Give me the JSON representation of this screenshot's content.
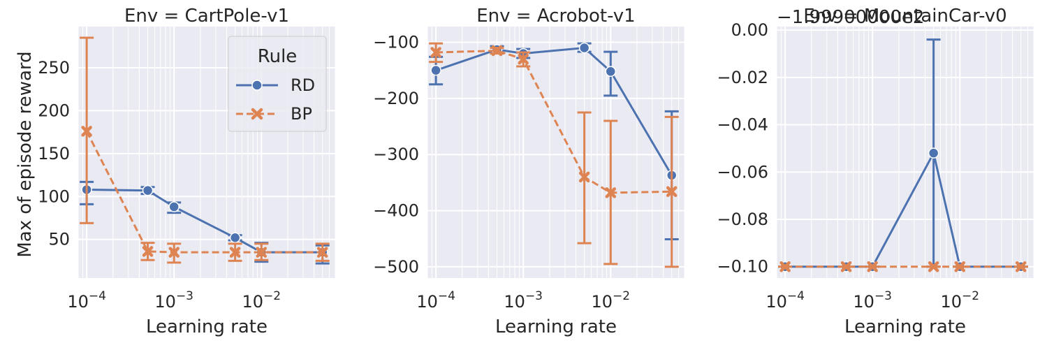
{
  "figure": {
    "ylabel": "Max of episode reward",
    "legend": {
      "title": "Rule",
      "placement": "upper right of first panel",
      "entries": [
        "RD",
        "BP"
      ]
    }
  },
  "chart_data": [
    {
      "type": "line",
      "title": "Env = CartPole-v1",
      "xlabel": "Learning rate",
      "ylabel": "Max of episode reward",
      "x_scale": "log",
      "x": [
        0.0001,
        0.0005,
        0.001,
        0.005,
        0.01,
        0.05
      ],
      "xlim": [
        8e-05,
        0.07
      ],
      "x_ticks": [
        {
          "value": 0.0001,
          "label": "10⁻⁴"
        },
        {
          "value": 0.001,
          "label": "10⁻³"
        },
        {
          "value": 0.01,
          "label": "10⁻²"
        }
      ],
      "ylim": [
        5,
        298
      ],
      "y_ticks": [
        {
          "value": 50,
          "label": "50"
        },
        {
          "value": 100,
          "label": "100"
        },
        {
          "value": 150,
          "label": "150"
        },
        {
          "value": 200,
          "label": "200"
        },
        {
          "value": 250,
          "label": "250"
        }
      ],
      "y_offset_label": "",
      "grid": true,
      "series": [
        {
          "name": "RD",
          "color": "#4c72b0",
          "marker": "circle",
          "linestyle": "solid",
          "values": [
            108,
            107,
            88,
            52,
            35,
            35
          ],
          "err_low": [
            91,
            103,
            81,
            49,
            24,
            22
          ],
          "err_high": [
            117,
            111,
            93,
            55,
            46,
            43
          ]
        },
        {
          "name": "BP",
          "color": "#dd8452",
          "marker": "x",
          "linestyle": "dashed",
          "values": [
            176,
            36,
            35,
            35,
            35,
            35
          ],
          "err_low": [
            69,
            26,
            23,
            25,
            26,
            25
          ],
          "err_high": [
            285,
            46,
            45,
            45,
            45,
            45
          ]
        }
      ]
    },
    {
      "type": "line",
      "title": "Env = Acrobot-v1",
      "xlabel": "Learning rate",
      "ylabel": "",
      "x_scale": "log",
      "x": [
        0.0001,
        0.0005,
        0.001,
        0.005,
        0.01,
        0.05
      ],
      "xlim": [
        8e-05,
        0.07
      ],
      "x_ticks": [
        {
          "value": 0.0001,
          "label": "10⁻⁴"
        },
        {
          "value": 0.001,
          "label": "10⁻³"
        },
        {
          "value": 0.01,
          "label": "10⁻²"
        }
      ],
      "ylim": [
        -520,
        -72
      ],
      "y_ticks": [
        {
          "value": -100,
          "label": "−100"
        },
        {
          "value": -200,
          "label": "−200"
        },
        {
          "value": -300,
          "label": "−300"
        },
        {
          "value": -400,
          "label": "−400"
        },
        {
          "value": -500,
          "label": "−500"
        }
      ],
      "y_offset_label": "",
      "grid": true,
      "series": [
        {
          "name": "RD",
          "color": "#4c72b0",
          "marker": "circle",
          "linestyle": "solid",
          "values": [
            -150,
            -113,
            -120,
            -110,
            -152,
            -337
          ],
          "err_low": [
            -175,
            -120,
            -128,
            -117,
            -195,
            -451
          ],
          "err_high": [
            -126,
            -107,
            -112,
            -102,
            -117,
            -223
          ]
        },
        {
          "name": "BP",
          "color": "#dd8452",
          "marker": "x",
          "linestyle": "dashed",
          "values": [
            -118,
            -115,
            -130,
            -340,
            -368,
            -366
          ],
          "err_low": [
            -135,
            -120,
            -143,
            -458,
            -495,
            -500
          ],
          "err_high": [
            -102,
            -110,
            -118,
            -225,
            -240,
            -233
          ]
        }
      ]
    },
    {
      "type": "line",
      "title": "Env = MountainCar-v0",
      "xlabel": "Learning rate",
      "ylabel": "",
      "x_scale": "log",
      "x": [
        0.0001,
        0.0005,
        0.001,
        0.005,
        0.01,
        0.05
      ],
      "xlim": [
        8e-05,
        0.07
      ],
      "x_ticks": [
        {
          "value": 0.0001,
          "label": "10⁻⁴"
        },
        {
          "value": 0.001,
          "label": "10⁻³"
        },
        {
          "value": 0.01,
          "label": "10⁻²"
        }
      ],
      "ylim": [
        -0.1048,
        0.0015
      ],
      "y_ticks": [
        {
          "value": 0.0,
          "label": "0.00"
        },
        {
          "value": -0.02,
          "label": "−0.02"
        },
        {
          "value": -0.04,
          "label": "−0.04"
        },
        {
          "value": -0.06,
          "label": "−0.06"
        },
        {
          "value": -0.08,
          "label": "−0.08"
        },
        {
          "value": -0.1,
          "label": "−0.10"
        }
      ],
      "y_offset_label": "−1.99900000e2",
      "grid": true,
      "series": [
        {
          "name": "RD",
          "color": "#4c72b0",
          "marker": "circle",
          "linestyle": "solid",
          "values": [
            -0.1,
            -0.1,
            -0.1,
            -0.052,
            -0.1,
            -0.1
          ],
          "err_low": [
            -0.1,
            -0.1,
            -0.1,
            -0.1,
            -0.1,
            -0.1
          ],
          "err_high": [
            -0.1,
            -0.1,
            -0.1,
            -0.004,
            -0.1,
            -0.1
          ]
        },
        {
          "name": "BP",
          "color": "#dd8452",
          "marker": "x",
          "linestyle": "dashed",
          "values": [
            -0.1,
            -0.1,
            -0.1,
            -0.1,
            -0.1,
            -0.1
          ],
          "err_low": [
            -0.1,
            -0.1,
            -0.1,
            -0.1,
            -0.1,
            -0.1
          ],
          "err_high": [
            -0.1,
            -0.1,
            -0.1,
            -0.1,
            -0.1,
            -0.1
          ]
        }
      ]
    }
  ]
}
